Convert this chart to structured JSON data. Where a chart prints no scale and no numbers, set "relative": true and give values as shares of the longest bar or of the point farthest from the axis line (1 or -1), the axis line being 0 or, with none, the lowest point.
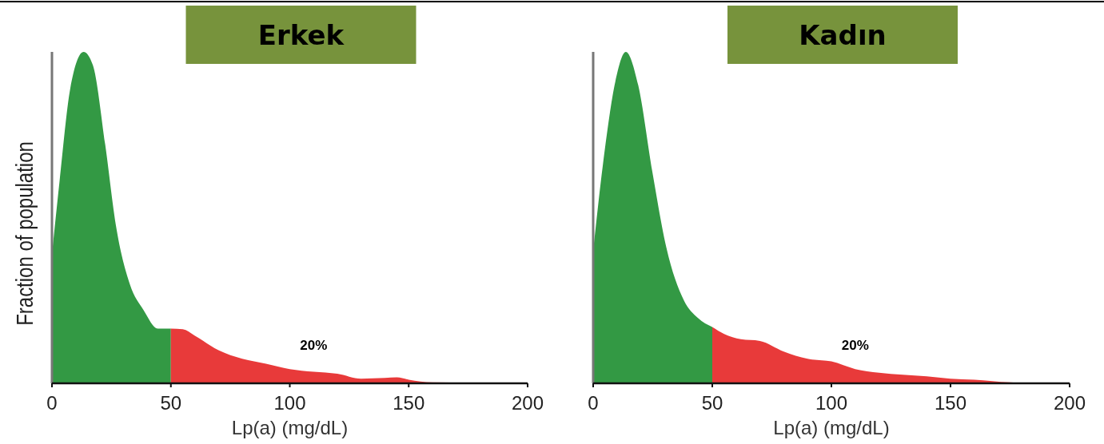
{
  "chart_data": [
    {
      "type": "area",
      "title": "Erkek",
      "xlabel": "Lp(a) (mg/dL)",
      "ylabel": "Fraction of population",
      "relative": true,
      "xlim": [
        0,
        200
      ],
      "xticks": [
        0,
        50,
        100,
        150,
        200
      ],
      "series": [
        {
          "color": "#339944",
          "x": [
            0,
            3.2,
            7.7,
            13.3,
            17.2,
            22.4,
            26.8,
            32.7,
            38.6,
            44.5,
            50
          ],
          "values": [
            0.39,
            0.61,
            0.89,
            1,
            0.96,
            0.72,
            0.48,
            0.3,
            0.22,
            0.165,
            0.165
          ]
        },
        {
          "color": "#e83a3a",
          "x": [
            50,
            55,
            60,
            70,
            80,
            90,
            100,
            110,
            120,
            130,
            140,
            145,
            150,
            160,
            175,
            200
          ],
          "values": [
            0.165,
            0.163,
            0.144,
            0.1,
            0.074,
            0.059,
            0.043,
            0.035,
            0.029,
            0.014,
            0.016,
            0.018,
            0.011,
            0.003,
            0.002,
            0
          ]
        }
      ],
      "annotations": [
        "20%"
      ]
    },
    {
      "type": "area",
      "title": "Kadın",
      "xlabel": "Lp(a) (mg/dL)",
      "relative": true,
      "xlim": [
        0,
        200
      ],
      "xticks": [
        0,
        50,
        100,
        150,
        200
      ],
      "series": [
        {
          "color": "#339944",
          "x": [
            0,
            4.1,
            9.3,
            13.7,
            18.9,
            24.8,
            30.7,
            38.1,
            44,
            50
          ],
          "values": [
            0.4,
            0.66,
            0.91,
            1,
            0.9,
            0.64,
            0.41,
            0.25,
            0.197,
            0.17
          ]
        },
        {
          "color": "#e83a3a",
          "x": [
            50,
            55,
            62,
            70,
            80,
            90,
            100,
            110,
            120,
            140,
            150,
            160,
            175,
            200
          ],
          "values": [
            0.17,
            0.149,
            0.133,
            0.128,
            0.096,
            0.074,
            0.066,
            0.043,
            0.032,
            0.021,
            0.014,
            0.011,
            0.003,
            0
          ]
        }
      ],
      "annotations": [
        "20%"
      ]
    }
  ]
}
